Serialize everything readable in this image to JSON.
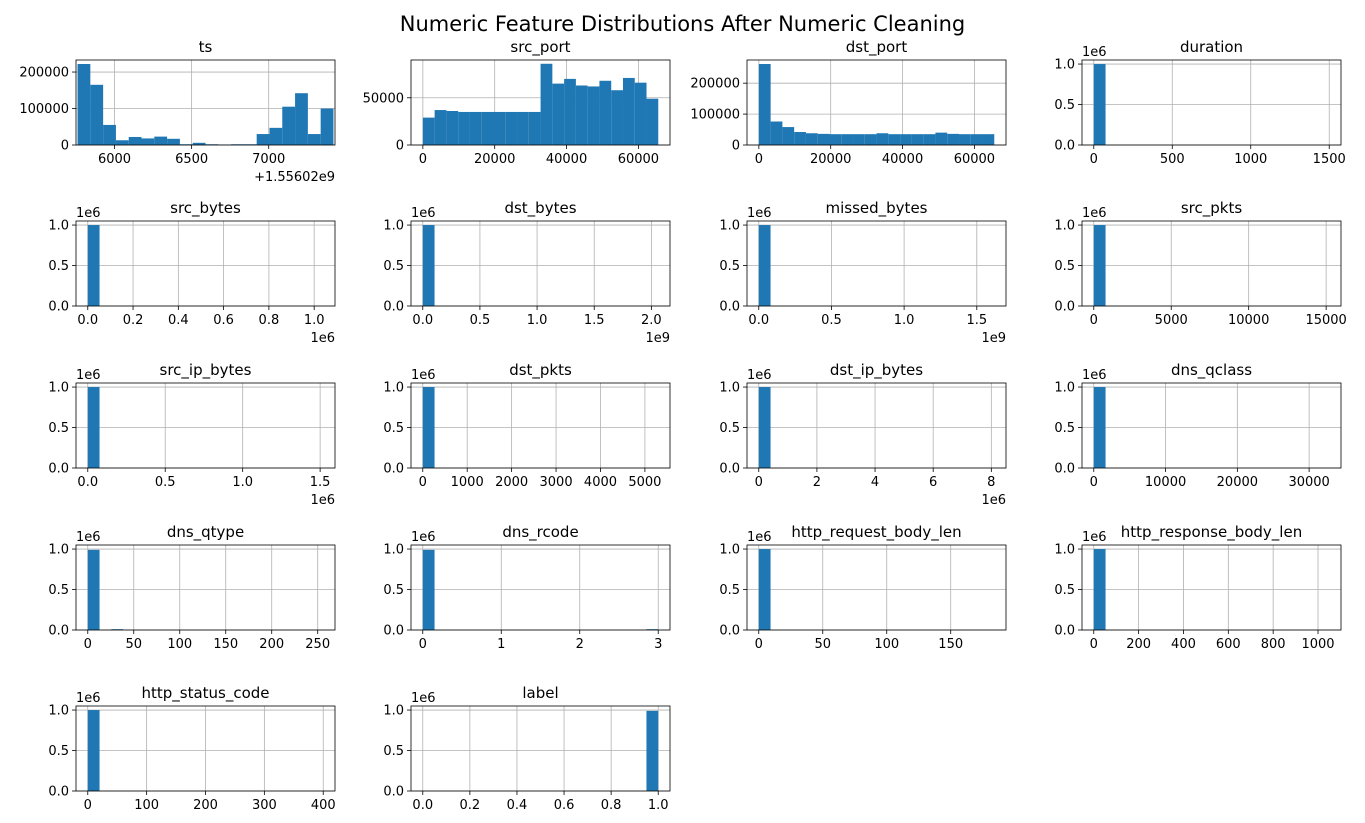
{
  "figure_title": "Numeric Feature Distributions After Numeric Cleaning",
  "colors": {
    "bar": "#1f77b4",
    "grid": "#b0b0b0",
    "axis": "#000000"
  },
  "chart_data": [
    {
      "type": "bar",
      "title": "ts",
      "grid": true,
      "xlim": [
        5750,
        7430
      ],
      "ylim": [
        0,
        233000
      ],
      "xticks": [
        6000,
        6500,
        7000
      ],
      "xtick_labels": [
        "6000",
        "6500",
        "7000"
      ],
      "yticks": [
        0,
        100000,
        200000
      ],
      "ytick_labels": [
        "0",
        "100000",
        "200000"
      ],
      "x_offset": "+1.55602e9",
      "y_multiplier": "",
      "bins": [
        5760,
        5843,
        5926,
        6009,
        6092,
        6175,
        6258,
        6341,
        6424,
        6507,
        6590,
        6673,
        6756,
        6839,
        6922,
        7005,
        7088,
        7171,
        7254,
        7337,
        7420
      ],
      "counts": [
        222000,
        165000,
        55000,
        13000,
        22000,
        18000,
        23000,
        17000,
        2000,
        6000,
        2000,
        1000,
        2000,
        2000,
        30000,
        47000,
        105000,
        142000,
        30000,
        100000
      ]
    },
    {
      "type": "bar",
      "title": "src_port",
      "grid": true,
      "xlim": [
        -3300,
        68800
      ],
      "ylim": [
        0,
        90000
      ],
      "xticks": [
        0,
        20000,
        40000,
        60000
      ],
      "xtick_labels": [
        "0",
        "20000",
        "40000",
        "60000"
      ],
      "yticks": [
        0,
        50000
      ],
      "ytick_labels": [
        "0",
        "50000"
      ],
      "x_offset": "",
      "y_multiplier": "",
      "bins": [
        0,
        3277,
        6554,
        9831,
        13108,
        16385,
        19662,
        22939,
        26216,
        29493,
        32770,
        36047,
        39324,
        42601,
        45878,
        49155,
        52432,
        55709,
        58986,
        62263,
        65535
      ],
      "counts": [
        29000,
        37000,
        36000,
        35000,
        35000,
        35000,
        35000,
        35000,
        35000,
        35000,
        86000,
        65000,
        70000,
        63000,
        62000,
        68000,
        58000,
        71000,
        66000,
        49000
      ]
    },
    {
      "type": "bar",
      "title": "dst_port",
      "grid": true,
      "xlim": [
        -3300,
        68800
      ],
      "ylim": [
        0,
        275000
      ],
      "xticks": [
        0,
        20000,
        40000,
        60000
      ],
      "xtick_labels": [
        "0",
        "20000",
        "40000",
        "60000"
      ],
      "yticks": [
        0,
        100000,
        200000
      ],
      "ytick_labels": [
        "0",
        "100000",
        "200000"
      ],
      "x_offset": "",
      "y_multiplier": "",
      "bins": [
        0,
        3277,
        6554,
        9831,
        13108,
        16385,
        19662,
        22939,
        26216,
        29493,
        32770,
        36047,
        39324,
        42601,
        45878,
        49155,
        52432,
        55709,
        58986,
        62263,
        65535
      ],
      "counts": [
        262000,
        76000,
        58000,
        42000,
        38000,
        36000,
        35000,
        35000,
        35000,
        35000,
        38000,
        35000,
        35000,
        35000,
        35000,
        40000,
        36000,
        35000,
        35000,
        35000
      ]
    },
    {
      "type": "bar",
      "title": "duration",
      "grid": true,
      "xlim": [
        -75,
        1575
      ],
      "ylim": [
        0,
        1.05
      ],
      "xticks": [
        0,
        500,
        1000,
        1500
      ],
      "xtick_labels": [
        "0",
        "500",
        "1000",
        "1500"
      ],
      "yticks": [
        0,
        0.5,
        1.0
      ],
      "ytick_labels": [
        "0.0",
        "0.5",
        "1.0"
      ],
      "x_offset": "",
      "y_multiplier": "1e6",
      "bins": [
        0,
        75
      ],
      "counts": [
        1.0
      ]
    },
    {
      "type": "bar",
      "title": "src_bytes",
      "grid": true,
      "xlim": [
        -52000,
        1092000
      ],
      "ylim": [
        0,
        1.05
      ],
      "xticks": [
        0,
        200000,
        400000,
        600000,
        800000,
        1000000
      ],
      "xtick_labels": [
        "0.0",
        "0.2",
        "0.4",
        "0.6",
        "0.8",
        "1.0"
      ],
      "yticks": [
        0,
        0.5,
        1.0
      ],
      "ytick_labels": [
        "0.0",
        "0.5",
        "1.0"
      ],
      "x_offset": "1e6",
      "y_multiplier": "1e6",
      "bins": [
        0,
        52000
      ],
      "counts": [
        1.0
      ]
    },
    {
      "type": "bar",
      "title": "dst_bytes",
      "grid": true,
      "xlim": [
        -103000000,
        2163000000
      ],
      "ylim": [
        0,
        1.05
      ],
      "xticks": [
        0,
        500000000,
        1000000000,
        1500000000,
        2000000000
      ],
      "xtick_labels": [
        "0.0",
        "0.5",
        "1.0",
        "1.5",
        "2.0"
      ],
      "yticks": [
        0,
        0.5,
        1.0
      ],
      "ytick_labels": [
        "0.0",
        "0.5",
        "1.0"
      ],
      "x_offset": "1e9",
      "y_multiplier": "1e6",
      "bins": [
        0,
        103000000
      ],
      "counts": [
        1.0
      ]
    },
    {
      "type": "bar",
      "title": "missed_bytes",
      "grid": true,
      "xlim": [
        -81000000,
        1701000000
      ],
      "ylim": [
        0,
        1.05
      ],
      "xticks": [
        0,
        500000000,
        1000000000,
        1500000000
      ],
      "xtick_labels": [
        "0.0",
        "0.5",
        "1.0",
        "1.5"
      ],
      "yticks": [
        0,
        0.5,
        1.0
      ],
      "ytick_labels": [
        "0.0",
        "0.5",
        "1.0"
      ],
      "x_offset": "1e9",
      "y_multiplier": "1e6",
      "bins": [
        0,
        81000000
      ],
      "counts": [
        1.0
      ]
    },
    {
      "type": "bar",
      "title": "src_pkts",
      "grid": true,
      "xlim": [
        -760,
        15960
      ],
      "ylim": [
        0,
        1.05
      ],
      "xticks": [
        0,
        5000,
        10000,
        15000
      ],
      "xtick_labels": [
        "0",
        "5000",
        "10000",
        "15000"
      ],
      "yticks": [
        0,
        0.5,
        1.0
      ],
      "ytick_labels": [
        "0.0",
        "0.5",
        "1.0"
      ],
      "x_offset": "",
      "y_multiplier": "1e6",
      "bins": [
        0,
        760
      ],
      "counts": [
        1.0
      ]
    },
    {
      "type": "bar",
      "title": "src_ip_bytes",
      "grid": true,
      "xlim": [
        -76000,
        1596000
      ],
      "ylim": [
        0,
        1.05
      ],
      "xticks": [
        0,
        500000,
        1000000,
        1500000
      ],
      "xtick_labels": [
        "0.0",
        "0.5",
        "1.0",
        "1.5"
      ],
      "yticks": [
        0,
        0.5,
        1.0
      ],
      "ytick_labels": [
        "0.0",
        "0.5",
        "1.0"
      ],
      "x_offset": "1e6",
      "y_multiplier": "1e6",
      "bins": [
        0,
        76000
      ],
      "counts": [
        1.0
      ]
    },
    {
      "type": "bar",
      "title": "dst_pkts",
      "grid": true,
      "xlim": [
        -265,
        5565
      ],
      "ylim": [
        0,
        1.05
      ],
      "xticks": [
        0,
        1000,
        2000,
        3000,
        4000,
        5000
      ],
      "xtick_labels": [
        "0",
        "1000",
        "2000",
        "3000",
        "4000",
        "5000"
      ],
      "yticks": [
        0,
        0.5,
        1.0
      ],
      "ytick_labels": [
        "0.0",
        "0.5",
        "1.0"
      ],
      "x_offset": "",
      "y_multiplier": "1e6",
      "bins": [
        0,
        265
      ],
      "counts": [
        1.0
      ]
    },
    {
      "type": "bar",
      "title": "dst_ip_bytes",
      "grid": true,
      "xlim": [
        -405000,
        8505000
      ],
      "ylim": [
        0,
        1.05
      ],
      "xticks": [
        0,
        2000000,
        4000000,
        6000000,
        8000000
      ],
      "xtick_labels": [
        "0",
        "2",
        "4",
        "6",
        "8"
      ],
      "yticks": [
        0,
        0.5,
        1.0
      ],
      "ytick_labels": [
        "0.0",
        "0.5",
        "1.0"
      ],
      "x_offset": "1e6",
      "y_multiplier": "1e6",
      "bins": [
        0,
        405000
      ],
      "counts": [
        1.0
      ]
    },
    {
      "type": "bar",
      "title": "dns_qclass",
      "grid": true,
      "xlim": [
        -1640,
        34440
      ],
      "ylim": [
        0,
        1.05
      ],
      "xticks": [
        0,
        10000,
        20000,
        30000
      ],
      "xtick_labels": [
        "0",
        "10000",
        "20000",
        "30000"
      ],
      "yticks": [
        0,
        0.5,
        1.0
      ],
      "ytick_labels": [
        "0.0",
        "0.5",
        "1.0"
      ],
      "x_offset": "",
      "y_multiplier": "1e6",
      "bins": [
        0,
        1640
      ],
      "counts": [
        1.0
      ]
    },
    {
      "type": "bar",
      "title": "dns_qtype",
      "grid": true,
      "xlim": [
        -12.8,
        268.8
      ],
      "ylim": [
        0,
        1.05
      ],
      "xticks": [
        0,
        50,
        100,
        150,
        200,
        250
      ],
      "xtick_labels": [
        "0",
        "50",
        "100",
        "150",
        "200",
        "250"
      ],
      "yticks": [
        0,
        0.5,
        1.0
      ],
      "ytick_labels": [
        "0.0",
        "0.5",
        "1.0"
      ],
      "x_offset": "",
      "y_multiplier": "1e6",
      "bins": [
        0,
        12.8,
        25.6,
        38.4
      ],
      "counts": [
        0.99,
        0,
        0.01
      ]
    },
    {
      "type": "bar",
      "title": "dns_rcode",
      "grid": true,
      "xlim": [
        -0.15,
        3.15
      ],
      "ylim": [
        0,
        1.05
      ],
      "xticks": [
        0,
        1,
        2,
        3
      ],
      "xtick_labels": [
        "0",
        "1",
        "2",
        "3"
      ],
      "yticks": [
        0,
        0.5,
        1.0
      ],
      "ytick_labels": [
        "0.0",
        "0.5",
        "1.0"
      ],
      "x_offset": "",
      "y_multiplier": "1e6",
      "bins": [
        0,
        0.15,
        0.3,
        0.45,
        0.6,
        0.75,
        0.9,
        1.05,
        1.2,
        1.35,
        1.5,
        1.65,
        1.8,
        1.95,
        2.1,
        2.25,
        2.4,
        2.55,
        2.7,
        2.85,
        3.0
      ],
      "counts": [
        0.99,
        0,
        0,
        0,
        0,
        0,
        0,
        0,
        0,
        0,
        0,
        0,
        0,
        0,
        0,
        0,
        0,
        0,
        0,
        0.01
      ]
    },
    {
      "type": "bar",
      "title": "http_request_body_len",
      "grid": true,
      "xlim": [
        -9.2,
        193.2
      ],
      "ylim": [
        0,
        1.05
      ],
      "xticks": [
        0,
        50,
        100,
        150
      ],
      "xtick_labels": [
        "0",
        "50",
        "100",
        "150"
      ],
      "yticks": [
        0,
        0.5,
        1.0
      ],
      "ytick_labels": [
        "0.0",
        "0.5",
        "1.0"
      ],
      "x_offset": "",
      "y_multiplier": "1e6",
      "bins": [
        0,
        9.2
      ],
      "counts": [
        1.0
      ]
    },
    {
      "type": "bar",
      "title": "http_response_body_len",
      "grid": true,
      "xlim": [
        -52.5,
        1102.5
      ],
      "ylim": [
        0,
        1.05
      ],
      "xticks": [
        0,
        200,
        400,
        600,
        800,
        1000
      ],
      "xtick_labels": [
        "0",
        "200",
        "400",
        "600",
        "800",
        "1000"
      ],
      "yticks": [
        0,
        0.5,
        1.0
      ],
      "ytick_labels": [
        "0.0",
        "0.5",
        "1.0"
      ],
      "x_offset": "",
      "y_multiplier": "1e6",
      "bins": [
        0,
        52.5
      ],
      "counts": [
        1.0
      ]
    },
    {
      "type": "bar",
      "title": "http_status_code",
      "grid": true,
      "xlim": [
        -20,
        420
      ],
      "ylim": [
        0,
        1.05
      ],
      "xticks": [
        0,
        100,
        200,
        300,
        400
      ],
      "xtick_labels": [
        "0",
        "100",
        "200",
        "300",
        "400"
      ],
      "yticks": [
        0,
        0.5,
        1.0
      ],
      "ytick_labels": [
        "0.0",
        "0.5",
        "1.0"
      ],
      "x_offset": "",
      "y_multiplier": "1e6",
      "bins": [
        0,
        20
      ],
      "counts": [
        1.0
      ]
    },
    {
      "type": "bar",
      "title": "label",
      "grid": true,
      "xlim": [
        -0.05,
        1.05
      ],
      "ylim": [
        0,
        1.05
      ],
      "xticks": [
        0,
        0.2,
        0.4,
        0.6,
        0.8,
        1.0
      ],
      "xtick_labels": [
        "0.0",
        "0.2",
        "0.4",
        "0.6",
        "0.8",
        "1.0"
      ],
      "yticks": [
        0,
        0.5,
        1.0
      ],
      "ytick_labels": [
        "0.0",
        "0.5",
        "1.0"
      ],
      "x_offset": "",
      "y_multiplier": "1e6",
      "bins": [
        0.95,
        1.0
      ],
      "counts": [
        0.99
      ]
    }
  ]
}
